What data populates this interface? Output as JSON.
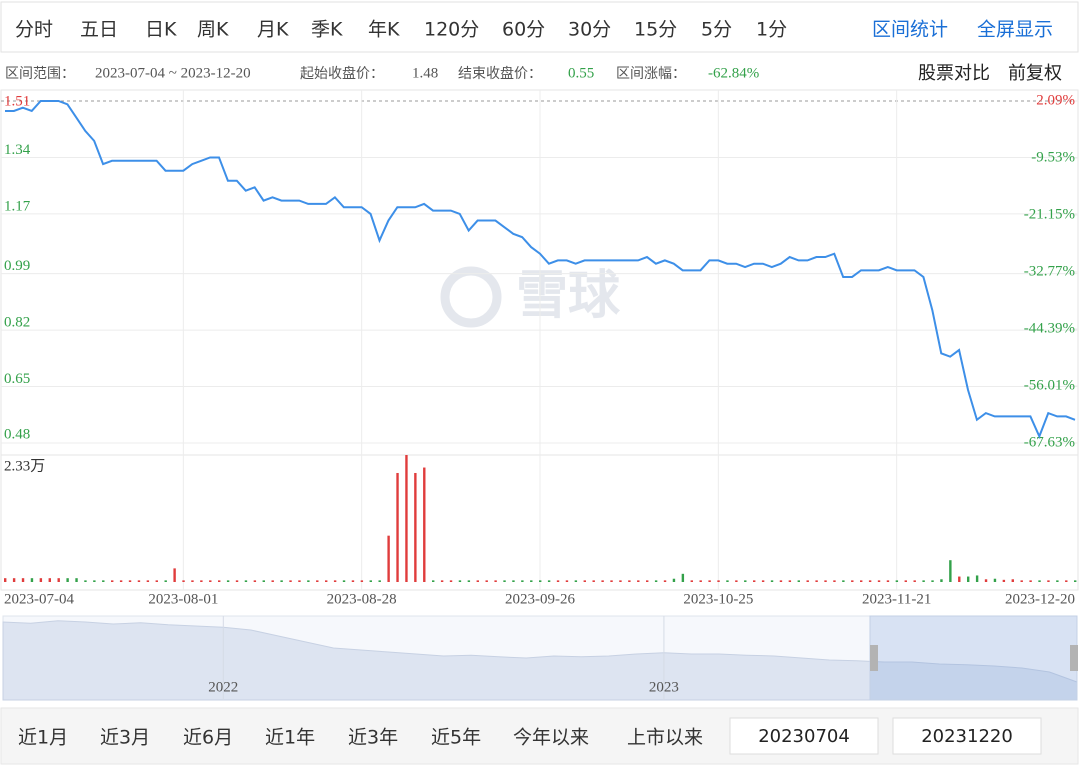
{
  "toolbar": {
    "periods": [
      "分时",
      "五日",
      "日K",
      "周K",
      "月K",
      "季K",
      "年K",
      "120分",
      "60分",
      "30分",
      "15分",
      "5分",
      "1分"
    ],
    "actions": [
      "区间统计",
      "全屏显示"
    ]
  },
  "summary": {
    "range_label": "区间范围：",
    "range": "2023-07-04 ~ 2023-12-20",
    "start_label": "起始收盘价：",
    "start": "1.48",
    "end_label": "结束收盘价：",
    "end": "0.55",
    "change_label": "区间涨幅：",
    "change": "-62.84%"
  },
  "options": [
    "股票对比",
    "前复权"
  ],
  "watermark": "雪球",
  "footer": {
    "ranges": [
      "近1月",
      "近3月",
      "近6月",
      "近1年",
      "近3年",
      "近5年",
      "今年以来",
      "上市以来"
    ],
    "start_date": "20230704",
    "end_date": "20231220"
  },
  "chart_data": [
    {
      "type": "line",
      "color": "#3d8fe8",
      "up_color": "#e03c3c",
      "down_color": "#33a14a",
      "grid": true,
      "categories": [
        "2023-07-04",
        null,
        null,
        null,
        null,
        null,
        null,
        null,
        null,
        null,
        null,
        null,
        null,
        null,
        null,
        null,
        null,
        null,
        null,
        null,
        "2023-08-01",
        null,
        null,
        null,
        null,
        null,
        null,
        null,
        null,
        null,
        null,
        null,
        null,
        null,
        null,
        null,
        null,
        null,
        null,
        null,
        "2023-08-28",
        null,
        null,
        null,
        null,
        null,
        null,
        null,
        null,
        null,
        null,
        null,
        null,
        null,
        null,
        null,
        null,
        null,
        null,
        null,
        "2023-09-26",
        null,
        null,
        null,
        null,
        null,
        null,
        null,
        null,
        null,
        null,
        null,
        null,
        null,
        null,
        null,
        null,
        null,
        null,
        null,
        "2023-10-25",
        null,
        null,
        null,
        null,
        null,
        null,
        null,
        null,
        null,
        null,
        null,
        null,
        null,
        null,
        null,
        null,
        null,
        null,
        null,
        "2023-11-21",
        null,
        null,
        null,
        null,
        null,
        null,
        null,
        null,
        null,
        null,
        null,
        null,
        null,
        null,
        null,
        null,
        null,
        null,
        null,
        "2023-12-20"
      ],
      "values": [
        1.48,
        1.48,
        1.49,
        1.48,
        1.51,
        1.51,
        1.51,
        1.5,
        1.46,
        1.42,
        1.39,
        1.32,
        1.33,
        1.33,
        1.33,
        1.33,
        1.33,
        1.33,
        1.3,
        1.3,
        1.3,
        1.32,
        1.33,
        1.34,
        1.34,
        1.27,
        1.27,
        1.24,
        1.25,
        1.21,
        1.22,
        1.21,
        1.21,
        1.21,
        1.2,
        1.2,
        1.2,
        1.22,
        1.19,
        1.19,
        1.19,
        1.17,
        1.09,
        1.15,
        1.19,
        1.19,
        1.19,
        1.2,
        1.18,
        1.18,
        1.18,
        1.17,
        1.12,
        1.15,
        1.15,
        1.15,
        1.13,
        1.11,
        1.1,
        1.07,
        1.05,
        1.02,
        1.03,
        1.03,
        1.02,
        1.03,
        1.03,
        1.03,
        1.03,
        1.03,
        1.03,
        1.03,
        1.04,
        1.02,
        1.03,
        1.02,
        1.0,
        1.0,
        1.0,
        1.03,
        1.03,
        1.02,
        1.02,
        1.01,
        1.02,
        1.02,
        1.01,
        1.02,
        1.04,
        1.03,
        1.03,
        1.04,
        1.04,
        1.05,
        0.98,
        0.98,
        1.0,
        1.0,
        1.0,
        1.01,
        1.0,
        1.0,
        1.0,
        0.98,
        0.88,
        0.75,
        0.74,
        0.76,
        0.64,
        0.55,
        0.57,
        0.56,
        0.56,
        0.56,
        0.56,
        0.56,
        0.5,
        0.57,
        0.56,
        0.56,
        0.55
      ],
      "ylim": [
        0.48,
        1.51
      ],
      "yticks": [
        1.51,
        1.34,
        1.17,
        0.99,
        0.82,
        0.65,
        0.48
      ],
      "y2lim": [
        -67.63,
        2.09
      ],
      "y2ticks": [
        {
          "value": 2.09,
          "label": "2.09%"
        },
        {
          "value": -9.53,
          "label": "-9.53%"
        },
        {
          "value": -21.15,
          "label": "-21.15%"
        },
        {
          "value": -32.77,
          "label": "-32.77%"
        },
        {
          "value": -44.39,
          "label": "-44.39%"
        },
        {
          "value": -56.01,
          "label": "-56.01%"
        },
        {
          "value": -67.63,
          "label": "-67.63%"
        }
      ]
    },
    {
      "type": "bar",
      "values": [
        0.07,
        0.07,
        0.07,
        0.07,
        0.07,
        0.07,
        0.07,
        0.07,
        0.07,
        0.03,
        0.03,
        0.03,
        0.03,
        0.03,
        0.03,
        0.03,
        0.03,
        0.03,
        0.03,
        0.25,
        0.03,
        0.03,
        0.03,
        0.03,
        0.03,
        0.03,
        0.03,
        0.03,
        0.03,
        0.03,
        0.03,
        0.03,
        0.03,
        0.03,
        0.03,
        0.03,
        0.03,
        0.03,
        0.03,
        0.03,
        0.03,
        0.03,
        0.03,
        0.85,
        2.0,
        2.33,
        2.0,
        2.1,
        0.03,
        0.03,
        0.03,
        0.03,
        0.03,
        0.03,
        0.03,
        0.03,
        0.03,
        0.03,
        0.03,
        0.03,
        0.03,
        0.03,
        0.03,
        0.03,
        0.03,
        0.03,
        0.03,
        0.03,
        0.03,
        0.03,
        0.03,
        0.03,
        0.03,
        0.03,
        0.03,
        0.06,
        0.15,
        0.03,
        0.03,
        0.03,
        0.03,
        0.03,
        0.03,
        0.03,
        0.03,
        0.03,
        0.03,
        0.03,
        0.03,
        0.03,
        0.03,
        0.03,
        0.03,
        0.03,
        0.03,
        0.03,
        0.03,
        0.03,
        0.03,
        0.03,
        0.03,
        0.03,
        0.03,
        0.03,
        0.03,
        0.05,
        0.4,
        0.1,
        0.1,
        0.12,
        0.05,
        0.06,
        0.04,
        0.05,
        0.03,
        0.03,
        0.03,
        0.03,
        0.03,
        0.03,
        0.03
      ],
      "ylim": [
        0,
        2.33
      ],
      "yticks": [
        {
          "value": 2.33,
          "label": "2.33万"
        }
      ]
    },
    {
      "type": "area",
      "color": "#dde4f1",
      "categories": [
        null,
        null,
        null,
        null,
        null,
        null,
        null,
        null,
        "2022",
        null,
        null,
        null,
        null,
        null,
        null,
        null,
        null,
        null,
        null,
        null,
        null,
        null,
        null,
        null,
        "2023",
        null,
        null,
        null,
        null,
        null,
        null,
        null,
        null,
        null,
        null,
        null,
        null,
        null,
        null,
        null
      ],
      "values": [
        1.95,
        1.92,
        1.98,
        1.95,
        1.9,
        1.93,
        1.88,
        1.85,
        1.82,
        1.75,
        1.6,
        1.45,
        1.3,
        1.25,
        1.2,
        1.15,
        1.1,
        1.12,
        1.08,
        1.05,
        1.1,
        1.08,
        1.1,
        1.15,
        1.18,
        1.15,
        1.15,
        1.12,
        1.1,
        1.05,
        1.0,
        0.98,
        0.95,
        0.95,
        0.9,
        0.88,
        0.85,
        0.8,
        0.7,
        0.45
      ],
      "ylim": [
        0,
        2.1
      ]
    }
  ]
}
